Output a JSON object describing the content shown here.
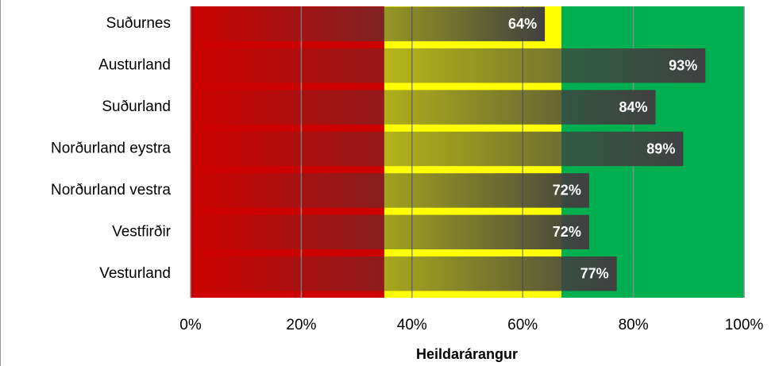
{
  "chart_data": {
    "type": "bar",
    "orientation": "horizontal",
    "x_label": "Heildarárangur",
    "categories": [
      "Suðurnes",
      "Austurland",
      "Suðurland",
      "Norðurland eystra",
      "Norðurland vestra",
      "Vestfirðir",
      "Vesturland"
    ],
    "values": [
      64,
      93,
      84,
      89,
      72,
      72,
      77
    ],
    "value_labels": [
      "64%",
      "93%",
      "84%",
      "89%",
      "72%",
      "72%",
      "77%"
    ],
    "color": "#404040",
    "bands": [
      {
        "from": 0,
        "to": 35,
        "color": "#cc0000"
      },
      {
        "from": 35,
        "to": 67,
        "color": "#ffff00"
      },
      {
        "from": 67,
        "to": 100,
        "color": "#00b050"
      }
    ],
    "xlim": [
      0,
      100
    ],
    "xticks": [
      {
        "value": 0,
        "label": "0%"
      },
      {
        "value": 20,
        "label": "20%"
      },
      {
        "value": 40,
        "label": "40%"
      },
      {
        "value": 60,
        "label": "60%"
      },
      {
        "value": 80,
        "label": "80%"
      },
      {
        "value": 100,
        "label": "100%"
      }
    ],
    "grid": true
  }
}
